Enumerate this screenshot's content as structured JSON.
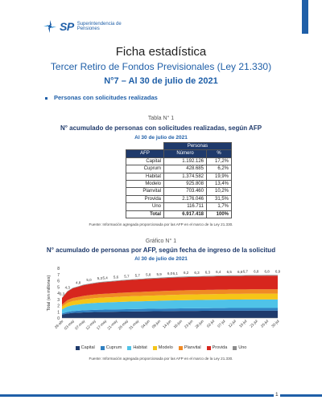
{
  "header": {
    "logo_mark": "SP",
    "logo_text_1": "Superintendencia de",
    "logo_text_2": "Pensiones",
    "title": "Ficha estadística",
    "subtitle": "Tercer Retiro de Fondos Previsionales (Ley 21.330)",
    "issue": "N°7 – Al 30 de julio de 2021",
    "brand_color": "#1f5fa8"
  },
  "section": {
    "label": "Personas con solicitudes realizadas"
  },
  "table": {
    "label": "Tabla N° 1",
    "title": "N° acumulado de personas con solicitudes realizadas, según AFP",
    "date": "Al 30 de julio de 2021",
    "group_header": "Personas",
    "columns": [
      "AFP",
      "Número",
      "%"
    ],
    "rows": [
      [
        "Capital",
        "1.192.126",
        "17,2%"
      ],
      [
        "Cuprum",
        "428.685",
        "6,2%"
      ],
      [
        "Habitat",
        "1.374.582",
        "19,9%"
      ],
      [
        "Modelo",
        "925.808",
        "13,4%"
      ],
      [
        "Planvital",
        "703.460",
        "10,2%"
      ],
      [
        "Provida",
        "2.176.046",
        "31,5%"
      ],
      [
        "Uno",
        "116.711",
        "1,7%"
      ],
      [
        "Total",
        "6.917.418",
        "100%"
      ]
    ],
    "source": "Fuente: Información agregada proporcionada por las AFP en el marco de la Ley 21.330."
  },
  "graph": {
    "label": "Gráfico N° 1",
    "title": "N° acumulado de personas por AFP, según fecha de ingreso de la solicitud",
    "date": "Al 30 de julio de 2021",
    "source": "Fuente: Información agregada proporcionada por las AFP en el marco de la Ley 21.330."
  },
  "chart_data": {
    "type": "area",
    "stacked": true,
    "ylabel": "Total (en millones)",
    "ylim": [
      0,
      8
    ],
    "yticks": [
      0,
      1,
      2,
      3,
      4,
      5,
      6,
      7,
      8
    ],
    "x": [
      "28-abr",
      "30-abr",
      "03-may",
      "05-may",
      "07-may",
      "10-may",
      "12-may",
      "14-may",
      "17-may",
      "19-may",
      "21-may",
      "24-may",
      "26-may",
      "28-may",
      "31-may",
      "02-jun",
      "04-jun",
      "07-jun",
      "09-jun",
      "11-jun",
      "14-jun",
      "16-jun",
      "18-jun",
      "21-jun",
      "23-jun",
      "25-jun",
      "28-jun",
      "30-jun",
      "02-jul",
      "05-jul",
      "07-jul",
      "09-jul",
      "12-jul",
      "14-jul",
      "16-jul",
      "19-jul",
      "21-jul",
      "23-jul",
      "26-jul",
      "28-jul",
      "30-jul"
    ],
    "totals_labels": [
      "3,3",
      "4,3",
      "4,8",
      "5,0",
      "5,3",
      "5,4",
      "5,6",
      "5,7",
      "5,7",
      "5,8",
      "5,9",
      "6,0",
      "6,1",
      "6,2",
      "6,3",
      "6,3",
      "6,4",
      "6,5",
      "6,6",
      "6,7",
      "6,8",
      "6,8",
      "6,9"
    ],
    "series": [
      {
        "name": "Capital",
        "color": "#1f3a6b",
        "values": [
          0.55,
          0.73,
          0.82,
          0.86,
          0.91,
          0.93,
          0.96,
          0.98,
          0.99,
          1.0,
          1.01,
          1.03,
          1.04,
          1.05,
          1.06,
          1.07,
          1.08,
          1.09,
          1.1,
          1.11,
          1.12,
          1.13,
          1.14,
          1.14,
          1.15,
          1.15,
          1.16,
          1.16,
          1.17,
          1.17,
          1.17,
          1.18,
          1.18,
          1.18,
          1.18,
          1.19,
          1.19,
          1.19,
          1.19,
          1.19,
          1.19
        ]
      },
      {
        "name": "Cuprum",
        "color": "#2f7fc1",
        "values": [
          0.2,
          0.26,
          0.29,
          0.31,
          0.33,
          0.34,
          0.35,
          0.36,
          0.36,
          0.37,
          0.37,
          0.38,
          0.38,
          0.39,
          0.39,
          0.39,
          0.4,
          0.4,
          0.4,
          0.41,
          0.41,
          0.41,
          0.41,
          0.42,
          0.42,
          0.42,
          0.42,
          0.42,
          0.42,
          0.43,
          0.43,
          0.43,
          0.43,
          0.43,
          0.43,
          0.43,
          0.43,
          0.43,
          0.43,
          0.43,
          0.43
        ]
      },
      {
        "name": "Habitat",
        "color": "#4fc3e8",
        "values": [
          0.63,
          0.85,
          0.95,
          1.0,
          1.05,
          1.08,
          1.11,
          1.13,
          1.15,
          1.16,
          1.18,
          1.19,
          1.21,
          1.22,
          1.23,
          1.24,
          1.25,
          1.26,
          1.27,
          1.28,
          1.29,
          1.3,
          1.31,
          1.31,
          1.32,
          1.33,
          1.33,
          1.34,
          1.34,
          1.35,
          1.35,
          1.36,
          1.36,
          1.36,
          1.37,
          1.37,
          1.37,
          1.37,
          1.37,
          1.37,
          1.37
        ]
      },
      {
        "name": "Modelo",
        "color": "#f5c518",
        "values": [
          0.45,
          0.59,
          0.66,
          0.69,
          0.73,
          0.75,
          0.77,
          0.79,
          0.8,
          0.81,
          0.82,
          0.83,
          0.84,
          0.85,
          0.85,
          0.86,
          0.87,
          0.87,
          0.88,
          0.88,
          0.89,
          0.89,
          0.9,
          0.9,
          0.9,
          0.91,
          0.91,
          0.91,
          0.91,
          0.92,
          0.92,
          0.92,
          0.92,
          0.92,
          0.92,
          0.93,
          0.93,
          0.93,
          0.93,
          0.93,
          0.93
        ]
      },
      {
        "name": "Planvital",
        "color": "#f08a24",
        "values": [
          0.33,
          0.44,
          0.5,
          0.52,
          0.55,
          0.57,
          0.58,
          0.59,
          0.6,
          0.61,
          0.62,
          0.63,
          0.63,
          0.64,
          0.65,
          0.65,
          0.66,
          0.66,
          0.67,
          0.67,
          0.68,
          0.68,
          0.68,
          0.69,
          0.69,
          0.69,
          0.69,
          0.7,
          0.7,
          0.7,
          0.7,
          0.7,
          0.7,
          0.7,
          0.7,
          0.7,
          0.7,
          0.7,
          0.7,
          0.7,
          0.7
        ]
      },
      {
        "name": "Provida",
        "color": "#d7261e",
        "values": [
          1.05,
          1.38,
          1.55,
          1.63,
          1.71,
          1.76,
          1.8,
          1.84,
          1.87,
          1.89,
          1.92,
          1.94,
          1.96,
          1.98,
          2.0,
          2.01,
          2.03,
          2.04,
          2.05,
          2.07,
          2.08,
          2.09,
          2.1,
          2.11,
          2.12,
          2.12,
          2.13,
          2.14,
          2.14,
          2.15,
          2.15,
          2.16,
          2.16,
          2.16,
          2.17,
          2.17,
          2.17,
          2.17,
          2.18,
          2.18,
          2.18
        ]
      },
      {
        "name": "Uno",
        "color": "#8c8c8c",
        "values": [
          0.06,
          0.07,
          0.08,
          0.08,
          0.09,
          0.09,
          0.09,
          0.1,
          0.1,
          0.1,
          0.1,
          0.1,
          0.1,
          0.1,
          0.1,
          0.11,
          0.11,
          0.11,
          0.11,
          0.11,
          0.11,
          0.11,
          0.11,
          0.11,
          0.11,
          0.11,
          0.11,
          0.11,
          0.11,
          0.12,
          0.12,
          0.12,
          0.12,
          0.12,
          0.12,
          0.12,
          0.12,
          0.12,
          0.12,
          0.12,
          0.12
        ]
      }
    ]
  },
  "footer": {
    "page_number": "1"
  }
}
